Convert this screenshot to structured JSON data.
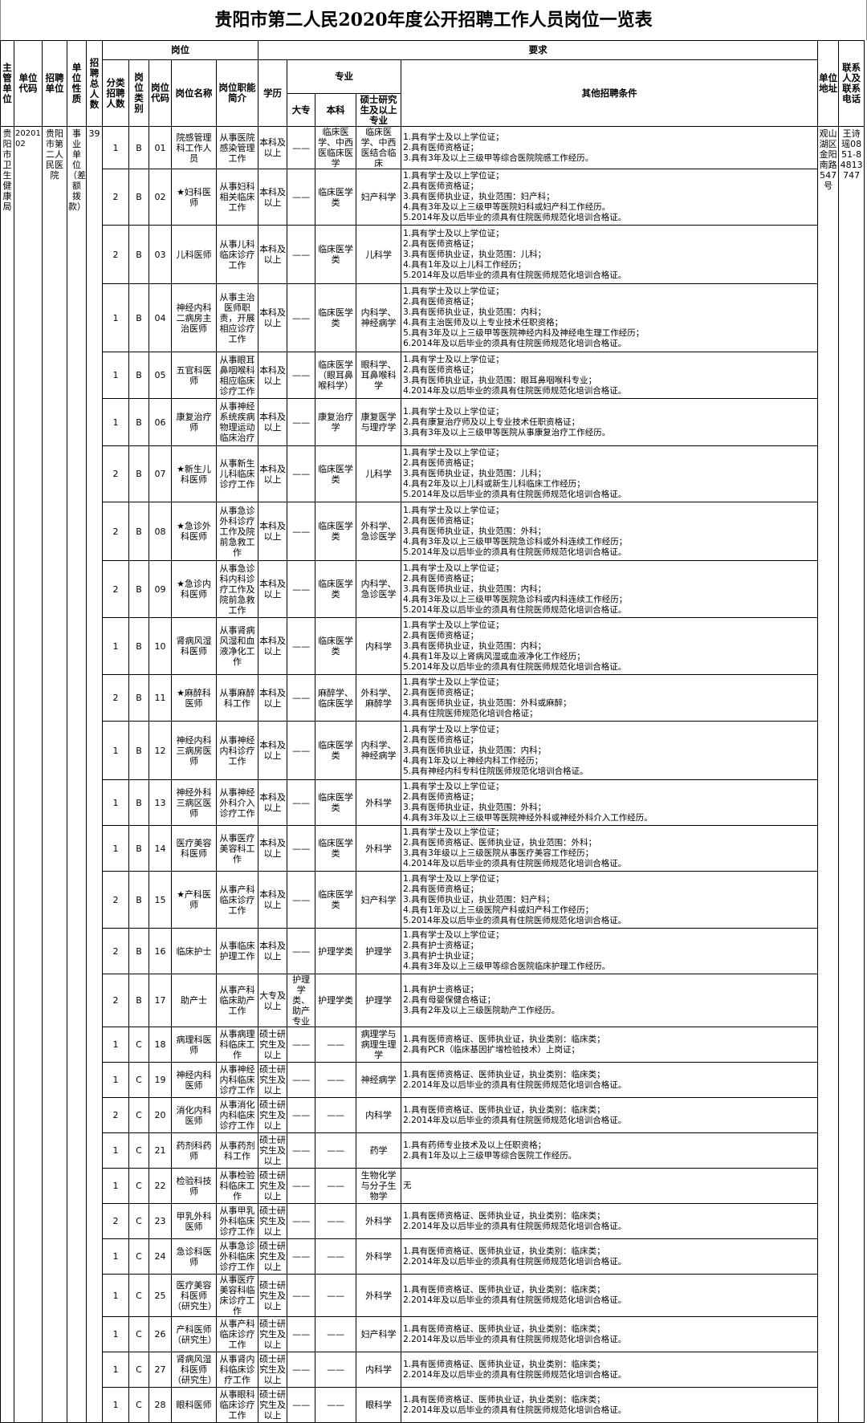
{
  "title": "贵阳市第二人民2020年度公开招聘工作人员岗位一览表",
  "headers": {
    "supervisor": "主管单位",
    "unit_code": "单位代码",
    "unit": "招聘单位",
    "nature": "单位性质",
    "total": "招聘总人数",
    "post": "岗位",
    "requirements": "要求",
    "count": "分类招聘人数",
    "type": "岗位类别",
    "code": "岗位代码",
    "name": "岗位名称",
    "duty": "岗位职能简介",
    "education": "学历",
    "major": "专业",
    "dazhuan": "大专",
    "benke": "本科",
    "master": "硕士研究生及以上专业",
    "other": "其他招聘条件",
    "address": "单位地址",
    "contact": "联系人及联系电话"
  },
  "unit_info": {
    "supervisor": "贵阳市卫生健康局",
    "unit_code": "2020102",
    "unit": "贵阳市第二人民医院",
    "nature": "事业单位（差额拨款）",
    "total": "39",
    "address": "观山湖区金阳南路547号",
    "contact": "王诗瑶0851-84813747"
  },
  "rows": [
    {
      "count": "1",
      "type": "B",
      "code": "01",
      "name": "院感管理科工作人员",
      "duty": "从事医院感染管理工作",
      "edu": "本科及以上",
      "dazhuan": "——",
      "benke": "临床医学、中西医临床医学",
      "master": "临床医学、中西医结合临床",
      "conditions": [
        "1.具有学士及以上学位证；",
        "2.具有医师资格证；",
        "3.具有3年及以上三级甲等综合医院院感工作经历。"
      ]
    },
    {
      "count": "2",
      "type": "B",
      "code": "02",
      "name": "★妇科医师",
      "duty": "从事妇科相关临床工作",
      "edu": "本科及以上",
      "dazhuan": "——",
      "benke": "临床医学类",
      "master": "妇产科学",
      "conditions": [
        "1.具有学士及以上学位证；",
        "2.具有医师资格证；",
        "3.具有医师执业证，执业范围：妇产科；",
        "4.具有3年及以上三级甲等医院妇科或妇产科工作经历。",
        "5.2014年及以后毕业的须具有住院医师规范化培训合格证。"
      ]
    },
    {
      "count": "2",
      "type": "B",
      "code": "03",
      "name": "儿科医师",
      "duty": "从事儿科临床诊疗工作",
      "edu": "本科及以上",
      "dazhuan": "——",
      "benke": "临床医学类",
      "master": "儿科学",
      "conditions": [
        "1.具有学士及以上学位证；",
        "2.具有医师资格证；",
        "3.具有医师执业证，执业范围：儿科；",
        "4.具有1年及以上儿科工作经历；",
        "5.2014年及以后毕业的须具有住院医师规范化培训合格证。"
      ]
    },
    {
      "count": "1",
      "type": "B",
      "code": "04",
      "name": "神经内科二病房主治医师",
      "duty": "从事主治医师职责，开展相应诊疗工作",
      "edu": "本科及以上",
      "dazhuan": "——",
      "benke": "临床医学类",
      "master": "内科学、神经病学",
      "conditions": [
        "1.具有学士及以上学位证；",
        "2.具有医师资格证；",
        "3.具有医师执业证，执业范围：内科；",
        "4.具有主治医师及以上专业技术任职资格；",
        "5.具有3年及以上三级甲等医院神经内科及神经电生理工作经历；",
        "6.2014年及以后毕业的须具有住院医师规范化培训合格证。"
      ]
    },
    {
      "count": "1",
      "type": "B",
      "code": "05",
      "name": "五官科医师",
      "duty": "从事眼耳鼻咽喉科相应临床诊疗工作",
      "edu": "本科及以上",
      "dazhuan": "——",
      "benke": "临床医学（眼耳鼻喉科学）",
      "master": "眼科学、耳鼻喉科学",
      "conditions": [
        "1.具有学士及以上学位证；",
        "2.具有医师资格证；",
        "3.具有医师执业证，执业范围：眼耳鼻咽喉科专业；",
        "4.2014年及以后毕业的须具有住院医师规范化培训合格证。"
      ]
    },
    {
      "count": "1",
      "type": "B",
      "code": "06",
      "name": "康复治疗师",
      "duty": "从事神经系统疾病物理运动临床治疗",
      "edu": "本科及以上",
      "dazhuan": "——",
      "benke": "康复治疗学",
      "master": "康复医学与理疗学",
      "conditions": [
        "1.具有学士及以上学位证；",
        "2.具有康复治疗师及以上专业技术任职资格证；",
        "3.具有3年及以上三级甲等医院从事康复治疗工作经历。"
      ]
    },
    {
      "count": "2",
      "type": "B",
      "code": "07",
      "name": "★新生儿科医师",
      "duty": "从事新生儿科临床诊疗工作",
      "edu": "本科及以上",
      "dazhuan": "——",
      "benke": "临床医学类",
      "master": "儿科学",
      "conditions": [
        "1.具有学士及以上学位证；",
        "2.具有医师资格证；",
        "3.具有医师执业证，执业范围：儿科；",
        "4.具有2年及以上儿科或新生儿科临床工作经历；",
        "5.2014年及以后毕业的须具有住院医师规范化培训合格证。"
      ]
    },
    {
      "count": "2",
      "type": "B",
      "code": "08",
      "name": "★急诊外科医师",
      "duty": "从事急诊外科诊疗工作及院前急救工作",
      "edu": "本科及以上",
      "dazhuan": "——",
      "benke": "临床医学类",
      "master": "外科学、急诊医学",
      "conditions": [
        "1.具有学士及以上学位证；",
        "2.具有医师资格证；",
        "3.具有医师执业证，执业范围：外科；",
        "4.具有3年及以上三级甲等医院急诊科或外科连续工作经历；",
        "5.2014年及以后毕业的须具有住院医师规范化培训合格证。"
      ]
    },
    {
      "count": "2",
      "type": "B",
      "code": "09",
      "name": "★急诊内科医师",
      "duty": "从事急诊科内科诊疗工作及院前急救工作",
      "edu": "本科及以上",
      "dazhuan": "——",
      "benke": "临床医学类",
      "master": "内科学、急诊医学",
      "conditions": [
        "1.具有学士及以上学位证；",
        "2.具有医师资格证；",
        "3.具有医师执业证，执业范围：内科；",
        "4.具有3年及以上三级甲等医院急诊科或内科连续工作经历；",
        "5.2014年及以后毕业的须具有住院医师规范化培训合格证。"
      ]
    },
    {
      "count": "1",
      "type": "B",
      "code": "10",
      "name": "肾病风湿科医师",
      "duty": "从事肾病风湿和血液净化工作",
      "edu": "本科及以上",
      "dazhuan": "——",
      "benke": "临床医学类",
      "master": "内科学",
      "conditions": [
        "1.具有学士及以上学位证；",
        "2.具有医师资格证；",
        "3.具有医师执业证，执业范围：内科；",
        "4.具有1年及以上肾病风湿或血液净化工作经历；",
        "5.2014年及以后毕业的须具有住院医师规范化培训合格证。"
      ]
    },
    {
      "count": "2",
      "type": "B",
      "code": "11",
      "name": "★麻醉科医师",
      "duty": "从事麻醉科工作",
      "edu": "本科及以上",
      "dazhuan": "——",
      "benke": "麻醉学、临床医学",
      "master": "外科学、麻醉学",
      "conditions": [
        "1.具有学士及以上学位证；",
        "2.具有医师资格证；",
        "3.具有医师执业证，执业范围：外科或麻醉；",
        "4.具有住院医师规范化培训合格证；"
      ]
    },
    {
      "count": "1",
      "type": "B",
      "code": "12",
      "name": "神经内科三病房医师",
      "duty": "从事神经内科诊疗工作",
      "edu": "本科及以上",
      "dazhuan": "——",
      "benke": "临床医学类",
      "master": "内科学、神经病学",
      "conditions": [
        "1.具有学士及以上学位证；",
        "2.具有医师资格证；",
        "3.具有医师执业证，执业范围：内科；",
        "4.具有1年及以上神经内科工作经历；",
        "5.具有神经内科专科住院医师规范化培训合格证。"
      ]
    },
    {
      "count": "1",
      "type": "B",
      "code": "13",
      "name": "神经外科三病区医师",
      "duty": "从事神经外科介入诊疗工作",
      "edu": "本科及以上",
      "dazhuan": "——",
      "benke": "临床医学类",
      "master": "外科学",
      "conditions": [
        "1.具有学士及以上学位证；",
        "2.具有医师资格证；",
        "3.具有医师执业证，执业范围：外科；",
        "4.具有3年及以上三级甲等医院神经外科或神经外科介入工作经历。"
      ]
    },
    {
      "count": "1",
      "type": "B",
      "code": "14",
      "name": "医疗美容科医师",
      "duty": "从事医疗美容科工作",
      "edu": "本科及以上",
      "dazhuan": "——",
      "benke": "临床医学类",
      "master": "外科学",
      "conditions": [
        "1.具有学士及以上学位证；",
        "2.具有医师资格证、医师执业证，执业范围：外科；",
        "3.具有3年级以上三级医院从事医疗美容工作经历；",
        "4.2014年及以后毕业的须具有住院医师规范化培训合格证。"
      ]
    },
    {
      "count": "2",
      "type": "B",
      "code": "15",
      "name": "★产科医师",
      "duty": "从事产科临床诊疗工作",
      "edu": "本科及以上",
      "dazhuan": "——",
      "benke": "临床医学类",
      "master": "妇产科学",
      "conditions": [
        "1.具有学士及以上学位证；",
        "2.具有医师资格证；",
        "3.具有医师执业证，执业范围：妇产科；",
        "4.具有1年及以上三级医院产科或妇产科工作经历；",
        "5.2014年及以后毕业的须具有住院医师规范化培训合格证。"
      ]
    },
    {
      "count": "2",
      "type": "B",
      "code": "16",
      "name": "临床护士",
      "duty": "从事临床护理工作",
      "edu": "本科及以上",
      "dazhuan": "——",
      "benke": "护理学类",
      "master": "护理学",
      "conditions": [
        "1.具有学士及以上学位证；",
        "2.具有护士资格证；",
        "3.具有护士执业证；",
        "4.具有3年及以上三级甲等综合医院临床护理工作经历。"
      ]
    },
    {
      "count": "2",
      "type": "B",
      "code": "17",
      "name": "助产士",
      "duty": "从事产科临床助产工作",
      "edu": "大专及以上",
      "dazhuan": "护理学类、助产专业",
      "benke": "护理学类",
      "master": "护理学",
      "conditions": [
        "1.具有护士资格证；",
        "2.具有母婴保健合格证；",
        "3.具有2年及以上三级医院助产工作经历。"
      ]
    },
    {
      "count": "1",
      "type": "C",
      "code": "18",
      "name": "病理科医师",
      "duty": "从事病理科临床工作",
      "edu": "硕士研究生及以上",
      "dazhuan": "——",
      "benke": "——",
      "master": "病理学与病理生理学",
      "conditions": [
        "1.具有医师资格证、医师执业证，执业类别：临床类；",
        "2.具有PCR（临床基因扩增检验技术）上岗证；"
      ]
    },
    {
      "count": "1",
      "type": "C",
      "code": "19",
      "name": "神经内科医师",
      "duty": "从事神经内科临床诊疗工作",
      "edu": "硕士研究生及以上",
      "dazhuan": "——",
      "benke": "——",
      "master": "神经病学",
      "conditions": [
        "1.具有医师资格证、医师执业证，执业类别：临床类；",
        "2.2014年及以后毕业的须具有住院医师规范化培训合格证。"
      ]
    },
    {
      "count": "2",
      "type": "C",
      "code": "20",
      "name": "消化内科医师",
      "duty": "从事消化内科临床诊疗工作",
      "edu": "硕士研究生及以上",
      "dazhuan": "——",
      "benke": "——",
      "master": "内科学",
      "conditions": [
        "1.具有医师资格证、医师执业证，执业类别：临床类；",
        "2.2014年及以后毕业的须具有住院医师规范化培训合格证。"
      ]
    },
    {
      "count": "1",
      "type": "C",
      "code": "21",
      "name": "药剂科药师",
      "duty": "从事药剂科工作",
      "edu": "硕士研究生及以上",
      "dazhuan": "——",
      "benke": "——",
      "master": "药学",
      "conditions": [
        "1.具有药师专业技术及以上任职资格；",
        "2.具有1年及以上三级甲等综合医院工作经历。"
      ]
    },
    {
      "count": "1",
      "type": "C",
      "code": "22",
      "name": "检验科技师",
      "duty": "从事检验科临床工作",
      "edu": "硕士研究生及以上",
      "dazhuan": "——",
      "benke": "——",
      "master": "生物化学与分子生物学",
      "conditions": [
        "无"
      ]
    },
    {
      "count": "2",
      "type": "C",
      "code": "23",
      "name": "甲乳外科医师",
      "duty": "从事甲乳外科临床诊疗工作",
      "edu": "硕士研究生及以上",
      "dazhuan": "——",
      "benke": "——",
      "master": "外科学",
      "conditions": [
        "1.具有医师资格证、医师执业证，执业类别：临床类；",
        "2.2014年及以后毕业的须具有住院医师规范化培训合格证。"
      ]
    },
    {
      "count": "1",
      "type": "C",
      "code": "24",
      "name": "急诊科医师",
      "duty": "从事急诊外科临床诊疗工作",
      "edu": "硕士研究生及以上",
      "dazhuan": "——",
      "benke": "——",
      "master": "外科学",
      "conditions": [
        "1.具有医师资格证、医师执业证，执业类别：临床类；",
        "2.2014年及以后毕业的须具有住院医师规范化培训合格证。"
      ]
    },
    {
      "count": "1",
      "type": "C",
      "code": "25",
      "name": "医疗美容科医师（研究生）",
      "duty": "从事医疗美容科临床诊疗工作",
      "edu": "硕士研究生及以上",
      "dazhuan": "——",
      "benke": "——",
      "master": "外科学",
      "conditions": [
        "1.具有医师资格证、医师执业证，执业类别：临床类；",
        "2.2014年及以后毕业的须具有住院医师规范化培训合格证。"
      ]
    },
    {
      "count": "1",
      "type": "C",
      "code": "26",
      "name": "产科医师（研究生）",
      "duty": "从事产科临床诊疗工作",
      "edu": "硕士研究生及以上",
      "dazhuan": "——",
      "benke": "——",
      "master": "妇产科学",
      "conditions": [
        "1.具有医师资格证、医师执业证，执业类别：临床类；",
        "2.2014年及以后毕业的须具有住院医师规范化培训合格证。"
      ]
    },
    {
      "count": "1",
      "type": "C",
      "code": "27",
      "name": "肾病风湿科医师（研究生）",
      "duty": "从事肾内科临床诊疗工作",
      "edu": "硕士研究生及以上",
      "dazhuan": "——",
      "benke": "——",
      "master": "内科学",
      "conditions": [
        "1.具有医师资格证、医师执业证，执业类别：临床类；",
        "2.2014年及以后毕业的须具有住院医师规范化培训合格证。"
      ]
    },
    {
      "count": "1",
      "type": "C",
      "code": "28",
      "name": "眼科医师",
      "duty": "从事眼科临床诊疗工作",
      "edu": "硕士研究生及以上",
      "dazhuan": "——",
      "benke": "——",
      "master": "眼科学",
      "conditions": [
        "1.具有医师资格证、医师执业证，执业类别：临床类；",
        "2.2014年及以后毕业的须具有住院医师规范化培训合格证。"
      ]
    }
  ]
}
